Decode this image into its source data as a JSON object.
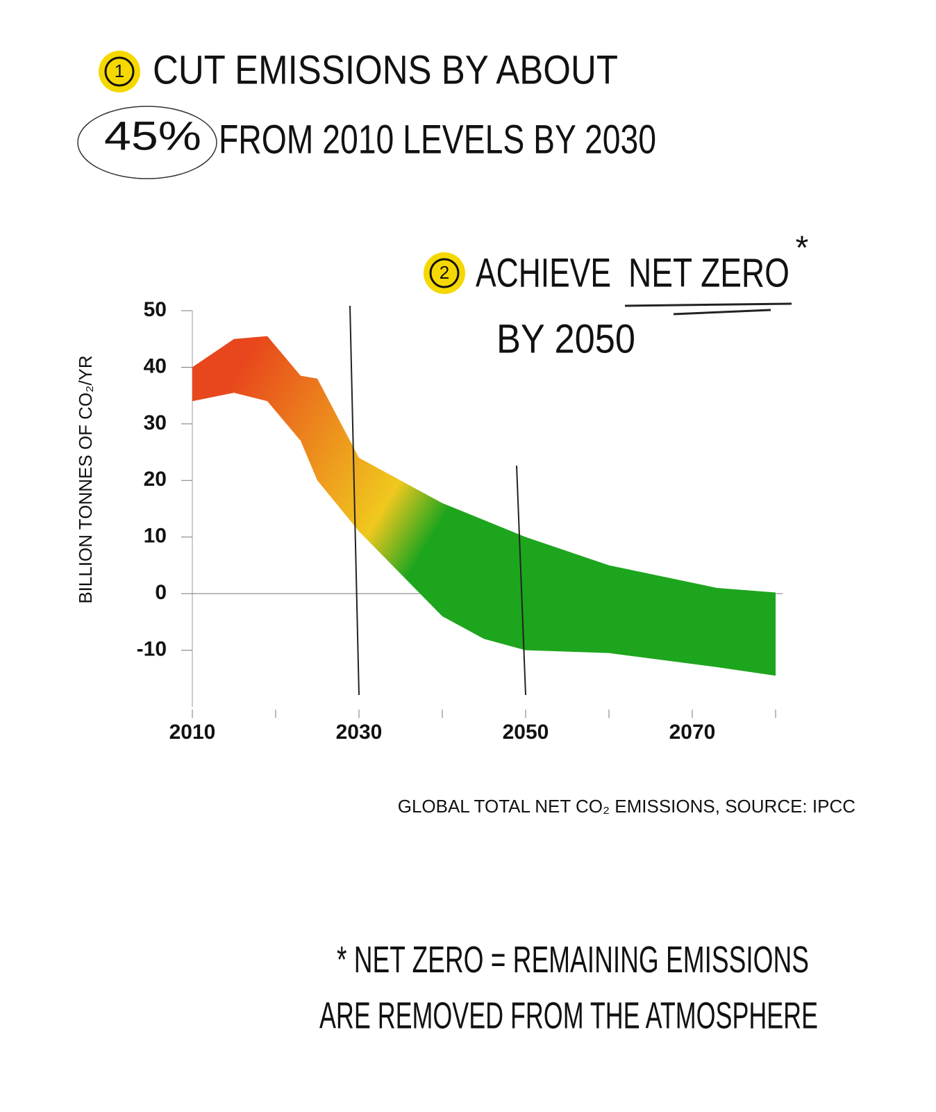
{
  "headline": {
    "number": "1",
    "line1": "CUT EMISSIONS BY ABOUT",
    "highlight": "45%",
    "line2": "FROM 2010 LEVELS BY 2030"
  },
  "goal": {
    "number": "2",
    "line1": "ACHIEVE",
    "underlined": "NET ZERO",
    "mark": "*",
    "line2": "BY 2050"
  },
  "footnote": {
    "mark": "*",
    "line1": "NET ZERO = REMAINING EMISSIONS",
    "line2": "ARE REMOVED FROM THE ATMOSPHERE"
  },
  "chart_data": {
    "type": "band",
    "ylabel": "BILLION TONNES OF CO₂/YR",
    "caption": "GLOBAL TOTAL NET CO₂ EMISSIONS, SOURCE: IPCC",
    "x": [
      2010,
      2015,
      2019,
      2023,
      2025,
      2030,
      2040,
      2045,
      2050,
      2060,
      2073,
      2080
    ],
    "upper": [
      40,
      45,
      45.5,
      38.5,
      38,
      24,
      16,
      13,
      10,
      5,
      1,
      0.2
    ],
    "lower": [
      34,
      35.5,
      34,
      27,
      20,
      11,
      -4,
      -8,
      -10,
      -10.5,
      -13,
      -14.5
    ],
    "colors": [
      "#e8461c",
      "#f0c81e",
      "#1ea51e"
    ],
    "xlim": [
      2010,
      2080
    ],
    "xticks": [
      2010,
      2030,
      2050,
      2070
    ],
    "xminor_ticks": [
      2020,
      2040,
      2060,
      2080
    ],
    "ylim": [
      -20,
      50
    ],
    "yticks": [
      -10,
      0,
      10,
      20,
      30,
      40,
      50
    ],
    "vlines": [
      2030,
      2050
    ],
    "zero_line": true
  }
}
